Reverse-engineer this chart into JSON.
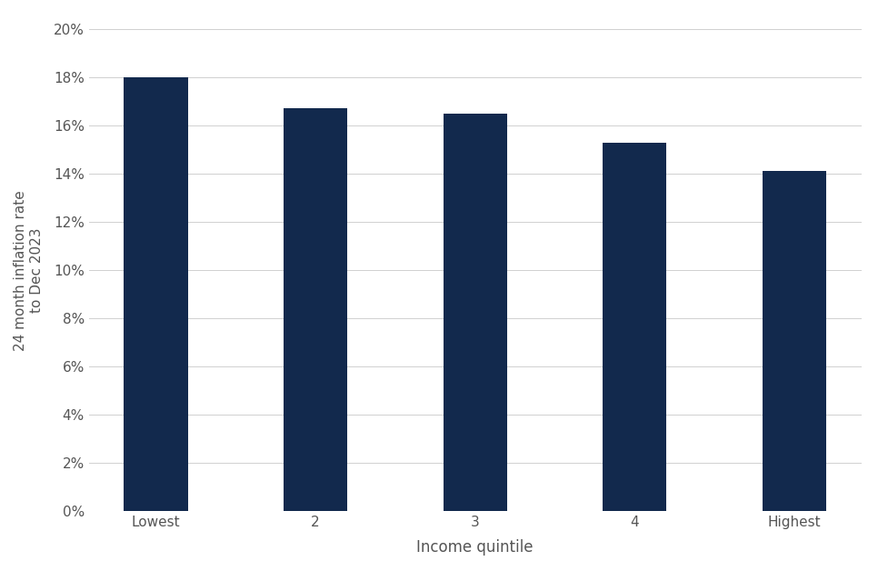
{
  "categories": [
    "Lowest",
    "2",
    "3",
    "4",
    "Highest"
  ],
  "values": [
    0.18,
    0.167,
    0.165,
    0.153,
    0.141
  ],
  "bar_color": "#12294d",
  "xlabel": "Income quintile",
  "ylabel": "24 month inflation rate\nto Dec 2023",
  "ylim": [
    0,
    0.2
  ],
  "yticks": [
    0.0,
    0.02,
    0.04,
    0.06,
    0.08,
    0.1,
    0.12,
    0.14,
    0.16,
    0.18,
    0.2
  ],
  "background_color": "#ffffff",
  "grid_color": "#d0d0d0",
  "bar_width": 0.4,
  "xlabel_fontsize": 12,
  "ylabel_fontsize": 11,
  "tick_fontsize": 11,
  "text_color": "#555555"
}
